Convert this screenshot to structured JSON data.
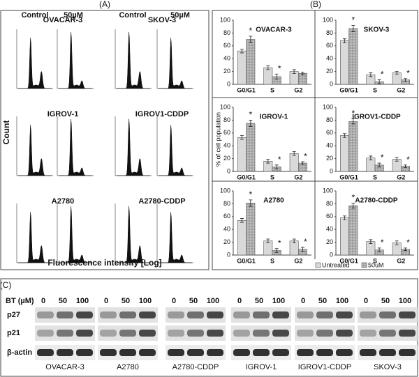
{
  "panels": {
    "a_label": "(A)",
    "b_label": "(B)",
    "c_label": "(C)"
  },
  "panel_a": {
    "col_headers": [
      "Control",
      "50µM",
      "Control",
      "50µM"
    ],
    "cell_lines": [
      "OVACAR-3",
      "SKOV-3",
      "IGROV-1",
      "IGROV1-CDDP",
      "A2780",
      "A2780-CDDP"
    ],
    "y_label": "Count",
    "x_label": "Fluorescence intensity [Log]"
  },
  "y_label": "% of cell population",
  "chart_data": [
    {
      "type": "bar",
      "title": "OVACAR-3",
      "categories": [
        "G0/G1",
        "S",
        "G2"
      ],
      "ylim": [
        0,
        100
      ],
      "yticks": [
        0,
        20,
        40,
        60,
        80,
        100
      ],
      "series": [
        {
          "name": "Untreated",
          "color": "#d9d9d9",
          "values": [
            52,
            26,
            20
          ],
          "errors": [
            3,
            3,
            3
          ]
        },
        {
          "name": "50uM",
          "color": "#a6a6a6",
          "values": [
            70,
            12,
            17
          ],
          "errors": [
            5,
            4,
            2
          ]
        }
      ],
      "annotations": [
        {
          "text": "*",
          "category": 0
        },
        {
          "text": "*",
          "category": 1
        }
      ]
    },
    {
      "type": "bar",
      "title": "SKOV-3",
      "categories": [
        "G0/G1",
        "S",
        "G2"
      ],
      "ylim": [
        0,
        100
      ],
      "yticks": [
        0,
        20,
        40,
        60,
        80,
        100
      ],
      "series": [
        {
          "name": "Untreated",
          "color": "#d9d9d9",
          "values": [
            68,
            15,
            18
          ],
          "errors": [
            3,
            3,
            2
          ]
        },
        {
          "name": "50uM",
          "color": "#a6a6a6",
          "values": [
            87,
            4,
            7
          ],
          "errors": [
            5,
            3,
            2
          ]
        }
      ],
      "annotations": [
        {
          "text": "*",
          "category": 0
        },
        {
          "text": "*",
          "category": 1
        },
        {
          "text": "*",
          "category": 2
        }
      ]
    },
    {
      "type": "bar",
      "title": "IGROV-1",
      "categories": [
        "G0/G1",
        "S",
        "G2"
      ],
      "ylim": [
        0,
        100
      ],
      "yticks": [
        0,
        20,
        40,
        60,
        80,
        100
      ],
      "series": [
        {
          "name": "Untreated",
          "color": "#d9d9d9",
          "values": [
            53,
            16,
            28
          ],
          "errors": [
            3,
            3,
            3
          ]
        },
        {
          "name": "50uM",
          "color": "#a6a6a6",
          "values": [
            75,
            7,
            13
          ],
          "errors": [
            5,
            3,
            2
          ]
        }
      ],
      "annotations": [
        {
          "text": "*",
          "category": 0
        },
        {
          "text": "*",
          "category": 1
        },
        {
          "text": "*",
          "category": 2
        }
      ]
    },
    {
      "type": "bar",
      "title": "IGROV1-CDDP",
      "categories": [
        "G0/G1",
        "S",
        "G2"
      ],
      "ylim": [
        0,
        100
      ],
      "yticks": [
        0,
        20,
        40,
        60,
        80,
        100
      ],
      "series": [
        {
          "name": "Untreated",
          "color": "#d9d9d9",
          "values": [
            56,
            21,
            19
          ],
          "errors": [
            3,
            3,
            3
          ]
        },
        {
          "name": "50uM",
          "color": "#a6a6a6",
          "values": [
            78,
            10,
            8
          ],
          "errors": [
            4,
            3,
            2
          ]
        }
      ],
      "annotations": [
        {
          "text": "*",
          "category": 0
        },
        {
          "text": "*",
          "category": 1
        },
        {
          "text": "*",
          "category": 2
        }
      ]
    },
    {
      "type": "bar",
      "title": "A2780",
      "categories": [
        "G0/G1",
        "S",
        "G2"
      ],
      "ylim": [
        0,
        100
      ],
      "yticks": [
        0,
        20,
        40,
        60,
        80,
        100
      ],
      "series": [
        {
          "name": "Untreated",
          "color": "#d9d9d9",
          "values": [
            54,
            22,
            22
          ],
          "errors": [
            3,
            3,
            3
          ]
        },
        {
          "name": "50uM",
          "color": "#a6a6a6",
          "values": [
            81,
            7,
            9
          ],
          "errors": [
            5,
            3,
            3
          ]
        }
      ],
      "annotations": [
        {
          "text": "*",
          "category": 0
        },
        {
          "text": "*",
          "category": 1
        },
        {
          "text": "*",
          "category": 2
        }
      ]
    },
    {
      "type": "bar",
      "title": "A2780-CDDP",
      "categories": [
        "G0/G1",
        "S",
        "G2"
      ],
      "ylim": [
        0,
        100
      ],
      "yticks": [
        0,
        20,
        40,
        60,
        80,
        100
      ],
      "series": [
        {
          "name": "Untreated",
          "color": "#d9d9d9",
          "values": [
            58,
            21,
            19
          ],
          "errors": [
            3,
            3,
            3
          ]
        },
        {
          "name": "50uM",
          "color": "#a6a6a6",
          "values": [
            77,
            8,
            9
          ],
          "errors": [
            4,
            3,
            2
          ]
        }
      ],
      "annotations": [
        {
          "text": "*",
          "category": 0
        },
        {
          "text": "*",
          "category": 1
        },
        {
          "text": "*",
          "category": 2
        }
      ]
    }
  ],
  "panel_c": {
    "bt_label": "BT (µM)",
    "doses": [
      "0",
      "50",
      "100"
    ],
    "rows": [
      "p27",
      "p21",
      "β-actin"
    ],
    "cell_lines": [
      "OVACAR-3",
      "A2780",
      "A2780-CDDP",
      "IGROV-1",
      "IGROV1-CDDP",
      "SKOV-3"
    ]
  }
}
